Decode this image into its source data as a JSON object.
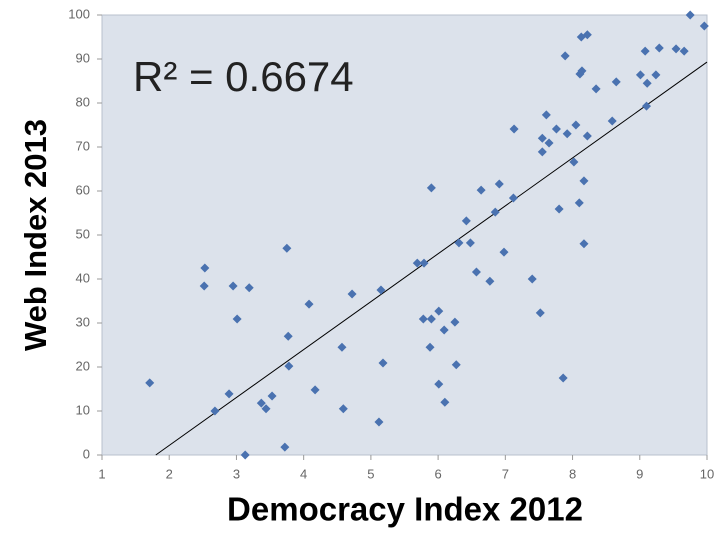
{
  "chart_data": {
    "type": "scatter",
    "xlabel": "Democracy Index 2012",
    "ylabel": "Web Index 2013",
    "annotation": "R² = 0.6674",
    "xlim": [
      1,
      10
    ],
    "ylim": [
      0,
      100
    ],
    "xticks": [
      1,
      2,
      3,
      4,
      5,
      6,
      7,
      8,
      9,
      10
    ],
    "yticks": [
      0,
      10,
      20,
      30,
      40,
      50,
      60,
      70,
      80,
      90,
      100
    ],
    "grid": false,
    "series": [
      {
        "color": "#4a72b0",
        "x": [
          1.71,
          2.53,
          2.52,
          2.68,
          2.89,
          2.95,
          3.01,
          3.13,
          3.19,
          3.37,
          3.44,
          3.53,
          3.75,
          3.77,
          3.78,
          3.72,
          4.08,
          4.17,
          4.57,
          4.59,
          4.72,
          5.12,
          5.15,
          5.18,
          5.69,
          5.79,
          5.78,
          5.88,
          5.9,
          5.9,
          6.01,
          6.01,
          6.09,
          6.1,
          6.25,
          6.27,
          6.31,
          6.42,
          6.48,
          6.57,
          6.64,
          6.77,
          6.85,
          6.91,
          6.98,
          7.12,
          7.13,
          7.4,
          7.52,
          7.55,
          7.55,
          7.61,
          7.65,
          7.76,
          7.8,
          7.86,
          7.89,
          7.92,
          8.02,
          8.05,
          8.1,
          8.11,
          8.14,
          8.13,
          8.22,
          8.17,
          8.17,
          8.22,
          8.35,
          8.59,
          8.65,
          9.01,
          9.08,
          9.1,
          9.11,
          9.24,
          9.29,
          9.54,
          9.66,
          9.75,
          9.96
        ],
        "values": [
          16.4,
          42.5,
          38.4,
          10,
          13.9,
          38.4,
          30.9,
          0,
          38,
          11.8,
          10.5,
          13.4,
          47,
          27,
          20.2,
          1.8,
          34.3,
          14.8,
          24.5,
          10.5,
          36.6,
          7.5,
          37.5,
          20.9,
          43.6,
          43.6,
          30.9,
          24.5,
          30.9,
          60.7,
          32.7,
          16.1,
          28.4,
          12,
          30.2,
          20.5,
          48.2,
          53.2,
          48.2,
          41.6,
          60.2,
          39.5,
          55.2,
          61.6,
          46.1,
          58.4,
          74.1,
          40,
          32.3,
          72,
          68.9,
          77.3,
          70.9,
          74.1,
          55.9,
          17.5,
          90.7,
          73,
          66.6,
          75,
          57.3,
          86.6,
          87.3,
          95,
          95.5,
          62.3,
          48,
          72.5,
          83.2,
          75.9,
          84.8,
          86.4,
          91.8,
          79.3,
          84.5,
          86.4,
          92.5,
          92.3,
          91.8,
          100,
          97.5
        ]
      }
    ],
    "trendline": {
      "color": "#000000",
      "x": [
        1.8,
        10
      ],
      "values": [
        0,
        89.3
      ]
    }
  }
}
